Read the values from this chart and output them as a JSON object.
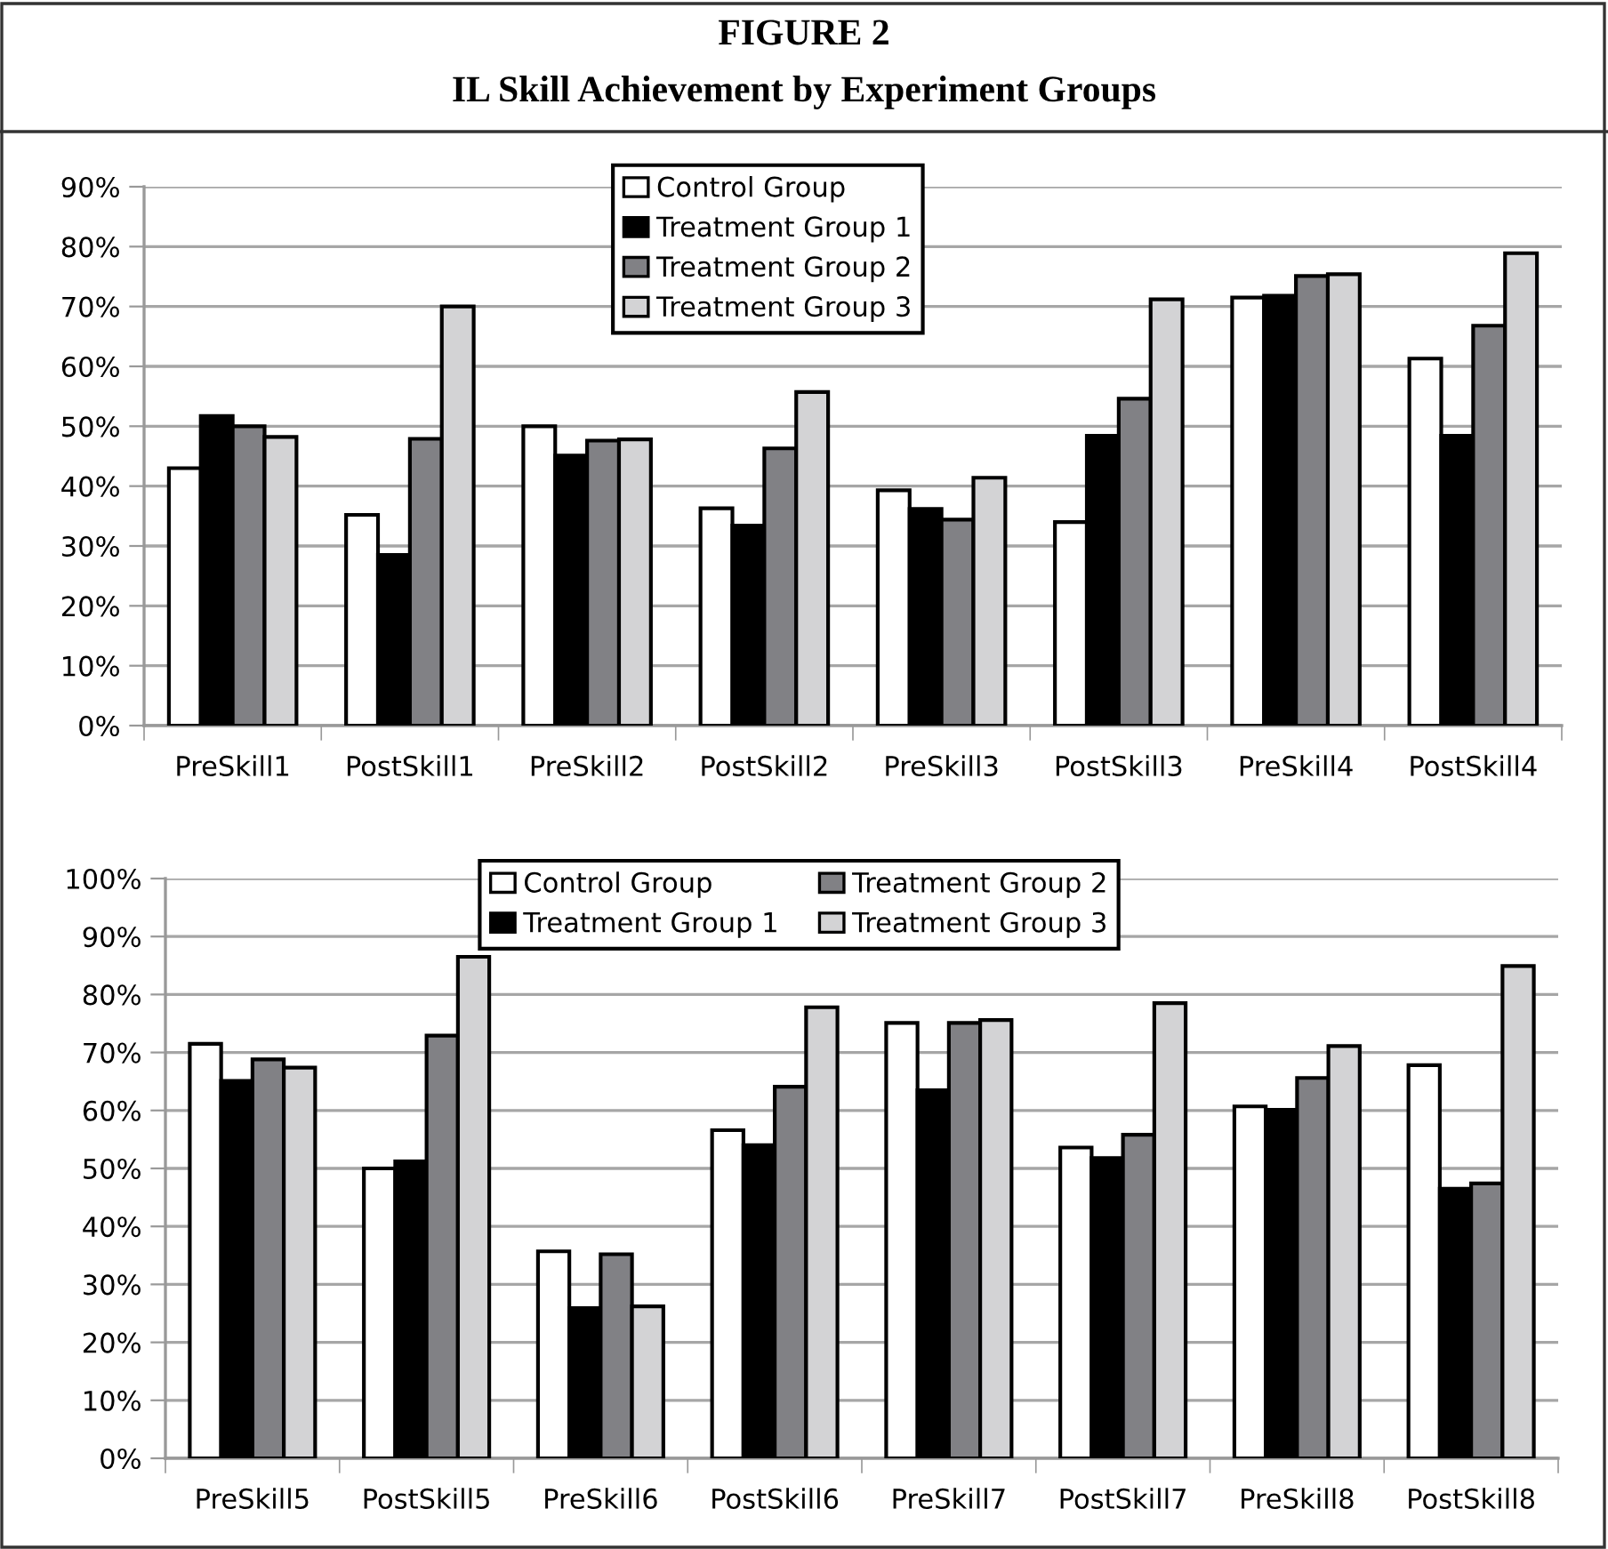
{
  "chart_data": [
    {
      "type": "bar",
      "title": "FIGURE 2",
      "subtitle": "IL Skill Achievement by Experiment Groups",
      "categories": [
        "PreSkill1",
        "PostSkill1",
        "PreSkill2",
        "PostSkill2",
        "PreSkill3",
        "PostSkill3",
        "PreSkill4",
        "PostSkill4"
      ],
      "series": [
        {
          "name": "Control Group",
          "color": "#ffffff",
          "values": [
            43,
            35.2,
            50,
            36.3,
            39.3,
            34,
            71.5,
            61.3
          ]
        },
        {
          "name": "Treatment Group 1",
          "color": "#000000",
          "values": [
            51.7,
            28.5,
            45.1,
            33.4,
            36.2,
            48.4,
            71.8,
            48.4
          ]
        },
        {
          "name": "Treatment Group 2",
          "color": "#818185",
          "values": [
            50,
            47.9,
            47.6,
            46.3,
            34.4,
            54.6,
            75.1,
            66.8
          ]
        },
        {
          "name": "Treatment Group 3",
          "color": "#d3d3d5",
          "values": [
            48.2,
            70,
            47.8,
            55.7,
            41.4,
            71.2,
            75.4,
            78.9
          ]
        }
      ],
      "ylim": [
        0,
        90
      ],
      "yticks": [
        {
          "value": 0,
          "label": "0%"
        },
        {
          "value": 10,
          "label": "10%"
        },
        {
          "value": 20,
          "label": "20%"
        },
        {
          "value": 30,
          "label": "30%"
        },
        {
          "value": 40,
          "label": "40%"
        },
        {
          "value": 50,
          "label": "50%"
        },
        {
          "value": 60,
          "label": "60%"
        },
        {
          "value": 70,
          "label": "70%"
        },
        {
          "value": 80,
          "label": "80%"
        },
        {
          "value": 90,
          "label": "90%"
        }
      ],
      "grid": "y",
      "legend": "top"
    },
    {
      "type": "bar",
      "categories": [
        "PreSkill5",
        "PostSkill5",
        "PreSkill6",
        "PostSkill6",
        "PreSkill7",
        "PostSkill7",
        "PreSkill8",
        "PostSkill8"
      ],
      "series": [
        {
          "name": "Control Group",
          "color": "#ffffff",
          "values": [
            71.5,
            50,
            35.7,
            56.6,
            75.1,
            53.6,
            60.7,
            67.8
          ]
        },
        {
          "name": "Treatment Group 1",
          "color": "#000000",
          "values": [
            65.1,
            51.2,
            25.9,
            54,
            63.5,
            51.8,
            60.1,
            46.5
          ]
        },
        {
          "name": "Treatment Group 2",
          "color": "#818185",
          "values": [
            68.8,
            72.9,
            35.2,
            64.1,
            75.1,
            55.8,
            65.6,
            47.4
          ]
        },
        {
          "name": "Treatment Group 3",
          "color": "#d3d3d5",
          "values": [
            67.4,
            86.5,
            26.2,
            77.8,
            75.6,
            78.5,
            71.1,
            84.9
          ]
        }
      ],
      "ylim": [
        0,
        100
      ],
      "yticks": [
        {
          "value": 0,
          "label": "0%"
        },
        {
          "value": 10,
          "label": "10%"
        },
        {
          "value": 20,
          "label": "20%"
        },
        {
          "value": 30,
          "label": "30%"
        },
        {
          "value": 40,
          "label": "40%"
        },
        {
          "value": 50,
          "label": "50%"
        },
        {
          "value": 60,
          "label": "60%"
        },
        {
          "value": 70,
          "label": "70%"
        },
        {
          "value": 80,
          "label": "80%"
        },
        {
          "value": 90,
          "label": "90%"
        },
        {
          "value": 100,
          "label": "100%"
        }
      ],
      "grid": "y",
      "legend": "top"
    }
  ]
}
